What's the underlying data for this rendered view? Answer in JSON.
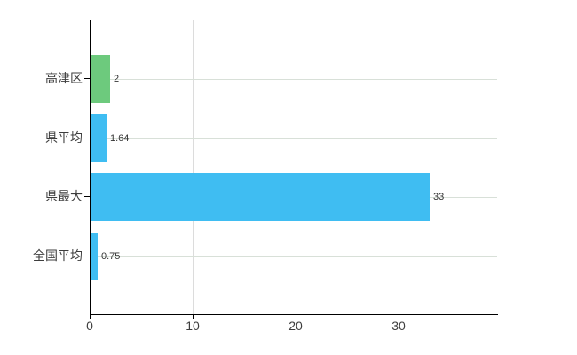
{
  "chart_data": {
    "type": "bar",
    "orientation": "horizontal",
    "title": "",
    "xlabel": "",
    "ylabel": "",
    "categories": [
      "高津区",
      "県平均",
      "県最大",
      "全国平均"
    ],
    "values": [
      2,
      1.64,
      33,
      0.75
    ],
    "value_labels": [
      "2",
      "1.64",
      "33",
      "0.75"
    ],
    "bar_colors": [
      "#6dca7d",
      "#3fbdf2",
      "#3fbdf2",
      "#3fbdf2"
    ],
    "x_ticks": [
      0,
      10,
      20,
      30
    ],
    "x_tick_labels": [
      "0",
      "10",
      "20",
      "30"
    ],
    "xlim": [
      0,
      39.57
    ],
    "grid": "on",
    "legend": "none"
  },
  "colors": {
    "bar_blue": "#3fbdf2",
    "bar_green": "#6dca7d",
    "axis": "#000000",
    "grid_vertical": "#dcdcdc",
    "grid_horizontal": "#d8e0d8",
    "plot_border_dashed": "#c9c9c9",
    "category_label": "#3d3d3d",
    "value_label": "#333333",
    "tick_label": "#3d3d3d"
  }
}
